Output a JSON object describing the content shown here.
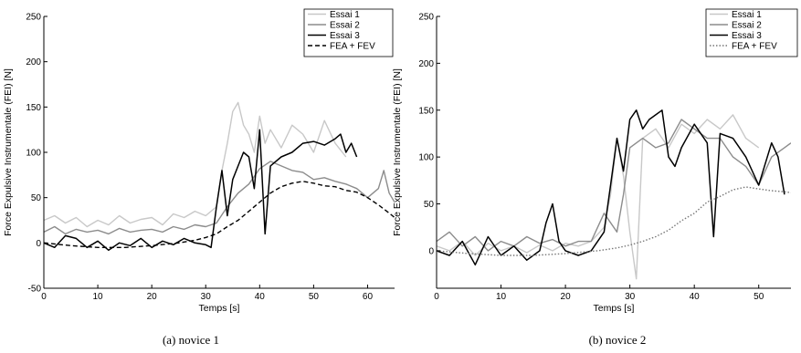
{
  "chart_data": [
    {
      "type": "line",
      "caption": "(a)  novice 1",
      "xlabel": "Temps [s]",
      "ylabel": "Force Expulsive Instrumentale (FEI) [N]",
      "xlim": [
        0,
        65
      ],
      "ylim": [
        -50,
        250
      ],
      "xticks": [
        0,
        10,
        20,
        30,
        40,
        50,
        60
      ],
      "yticks": [
        -50,
        0,
        50,
        100,
        150,
        200,
        250
      ],
      "legend_position": "top-right",
      "grid": false,
      "series": [
        {
          "name": "Essai 1",
          "color": "#c8c8c8",
          "style": "solid",
          "x": [
            0,
            2,
            4,
            6,
            8,
            10,
            12,
            14,
            16,
            18,
            20,
            22,
            24,
            26,
            28,
            30,
            32,
            33,
            34,
            35,
            36,
            37,
            38,
            39,
            40,
            41,
            42,
            44,
            46,
            48,
            50,
            52,
            54,
            56
          ],
          "y": [
            25,
            30,
            22,
            28,
            18,
            25,
            20,
            30,
            22,
            26,
            28,
            20,
            32,
            28,
            35,
            30,
            40,
            80,
            110,
            145,
            155,
            130,
            120,
            100,
            140,
            110,
            125,
            105,
            130,
            120,
            100,
            135,
            110,
            95
          ]
        },
        {
          "name": "Essai 2",
          "color": "#8c8c8c",
          "style": "solid",
          "x": [
            0,
            2,
            4,
            6,
            8,
            10,
            12,
            14,
            16,
            18,
            20,
            22,
            24,
            26,
            28,
            30,
            32,
            34,
            36,
            38,
            40,
            42,
            44,
            46,
            48,
            50,
            52,
            54,
            56,
            58,
            60,
            62,
            63,
            64,
            65
          ],
          "y": [
            12,
            18,
            10,
            15,
            12,
            14,
            10,
            16,
            12,
            14,
            15,
            12,
            18,
            15,
            20,
            18,
            22,
            40,
            55,
            65,
            82,
            90,
            85,
            80,
            78,
            70,
            72,
            68,
            65,
            60,
            50,
            60,
            80,
            55,
            45
          ]
        },
        {
          "name": "Essai 3",
          "color": "#000000",
          "style": "solid",
          "x": [
            0,
            2,
            4,
            6,
            8,
            10,
            12,
            14,
            16,
            18,
            20,
            22,
            24,
            26,
            28,
            30,
            31,
            32,
            33,
            34,
            35,
            36,
            37,
            38,
            39,
            40,
            41,
            42,
            44,
            46,
            48,
            50,
            52,
            54,
            55,
            56,
            57,
            58
          ],
          "y": [
            0,
            -5,
            8,
            5,
            -5,
            2,
            -8,
            0,
            -3,
            5,
            -5,
            2,
            -2,
            5,
            0,
            -2,
            -5,
            40,
            80,
            30,
            70,
            85,
            100,
            95,
            60,
            125,
            10,
            85,
            95,
            100,
            110,
            112,
            108,
            115,
            120,
            100,
            110,
            95
          ]
        },
        {
          "name": "FEA + FEV",
          "color": "#000000",
          "style": "dashed",
          "x": [
            0,
            5,
            10,
            15,
            20,
            25,
            28,
            30,
            32,
            34,
            36,
            38,
            40,
            42,
            44,
            46,
            48,
            50,
            52,
            54,
            56,
            58,
            60,
            62,
            64,
            65
          ],
          "y": [
            0,
            -3,
            -5,
            -5,
            -3,
            0,
            3,
            6,
            10,
            18,
            25,
            35,
            45,
            55,
            62,
            66,
            68,
            66,
            63,
            62,
            58,
            56,
            50,
            42,
            33,
            28
          ]
        }
      ]
    },
    {
      "type": "line",
      "caption": "(b)  novice 2",
      "xlabel": "Temps [s]",
      "ylabel": "Force Expulsive Instrumentale (FEI) [N]",
      "xlim": [
        0,
        55
      ],
      "ylim": [
        -40,
        250
      ],
      "xticks": [
        0,
        10,
        20,
        30,
        40,
        50
      ],
      "yticks": [
        0,
        50,
        100,
        150,
        200,
        250
      ],
      "legend_position": "top-right",
      "grid": false,
      "series": [
        {
          "name": "Essai 1",
          "color": "#c8c8c8",
          "style": "solid",
          "x": [
            0,
            2,
            4,
            6,
            8,
            10,
            12,
            14,
            16,
            18,
            20,
            22,
            24,
            26,
            27,
            28,
            29,
            30,
            31,
            32,
            34,
            36,
            38,
            40,
            42,
            44,
            46,
            48,
            50
          ],
          "y": [
            5,
            0,
            10,
            -5,
            8,
            0,
            5,
            -2,
            6,
            0,
            8,
            5,
            10,
            25,
            60,
            120,
            80,
            20,
            -30,
            120,
            130,
            110,
            135,
            125,
            140,
            130,
            145,
            120,
            110
          ]
        },
        {
          "name": "Essai 2",
          "color": "#8c8c8c",
          "style": "solid",
          "x": [
            0,
            2,
            4,
            6,
            8,
            10,
            12,
            14,
            16,
            18,
            20,
            22,
            24,
            26,
            28,
            29,
            30,
            32,
            34,
            36,
            38,
            40,
            42,
            44,
            46,
            48,
            50,
            52,
            54,
            55
          ],
          "y": [
            10,
            20,
            5,
            15,
            0,
            10,
            5,
            15,
            8,
            12,
            5,
            10,
            10,
            40,
            20,
            60,
            110,
            120,
            110,
            115,
            140,
            130,
            120,
            120,
            100,
            90,
            70,
            100,
            110,
            115
          ]
        },
        {
          "name": "Essai 3",
          "color": "#000000",
          "style": "solid",
          "x": [
            0,
            2,
            4,
            6,
            8,
            10,
            12,
            14,
            16,
            17,
            18,
            19,
            20,
            22,
            24,
            26,
            27,
            28,
            29,
            30,
            31,
            32,
            33,
            34,
            35,
            36,
            37,
            38,
            40,
            42,
            43,
            44,
            46,
            48,
            50,
            52,
            53,
            54
          ],
          "y": [
            0,
            -5,
            10,
            -15,
            15,
            -5,
            5,
            -10,
            0,
            30,
            50,
            10,
            0,
            -5,
            0,
            20,
            70,
            120,
            85,
            140,
            150,
            130,
            140,
            145,
            150,
            100,
            90,
            110,
            135,
            115,
            15,
            125,
            120,
            100,
            70,
            115,
            100,
            60
          ]
        },
        {
          "name": "FEA + FEV",
          "color": "#777777",
          "style": "dotted",
          "x": [
            0,
            5,
            10,
            15,
            20,
            25,
            28,
            30,
            32,
            34,
            36,
            38,
            40,
            42,
            44,
            46,
            48,
            50,
            52,
            54,
            55
          ],
          "y": [
            0,
            -3,
            -5,
            -5,
            -3,
            0,
            3,
            6,
            10,
            15,
            22,
            32,
            40,
            52,
            58,
            65,
            68,
            66,
            64,
            63,
            62
          ]
        }
      ]
    }
  ]
}
